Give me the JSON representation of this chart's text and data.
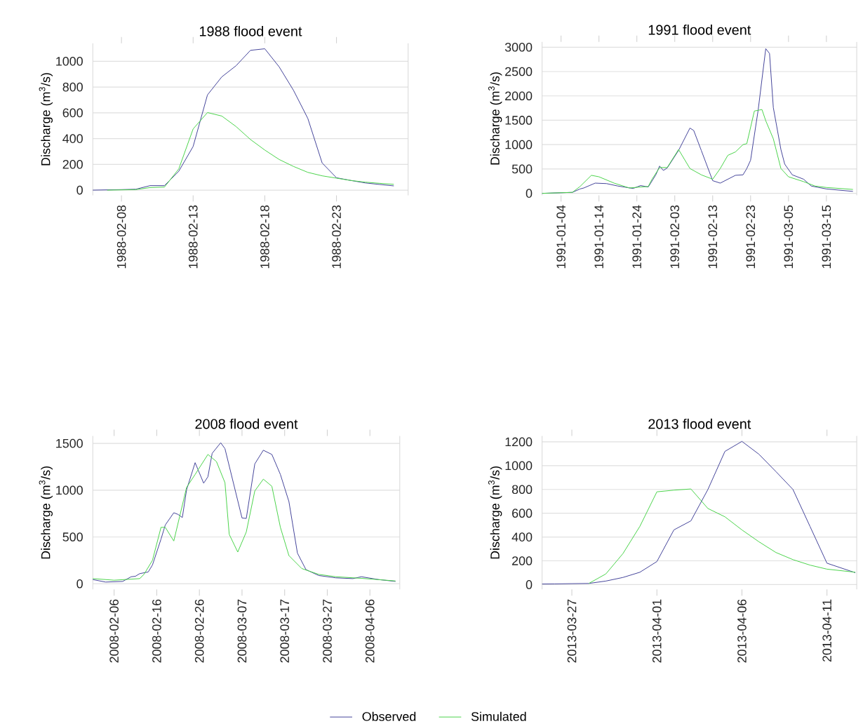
{
  "chart_data": [
    {
      "type": "line",
      "title": "1988 flood event",
      "ylabel": "Discharge (m$^{3}$/s)",
      "xlim": [
        "1988-02-06",
        "1988-02-28"
      ],
      "ylim": [
        -40,
        1140
      ],
      "xticks": [
        "1988-02-08",
        "1988-02-13",
        "1988-02-18",
        "1988-02-23"
      ],
      "yticks": [
        0,
        200,
        400,
        600,
        800,
        1000
      ],
      "grid": "y",
      "series": [
        {
          "color": "#45459a",
          "x": [
            "1988-02-06",
            "1988-02-07",
            "1988-02-08",
            "1988-02-09",
            "1988-02-10",
            "1988-02-11",
            "1988-02-12",
            "1988-02-13",
            "1988-02-14",
            "1988-02-15",
            "1988-02-16",
            "1988-02-17",
            "1988-02-18",
            "1988-02-19",
            "1988-02-20",
            "1988-02-21",
            "1988-02-22",
            "1988-02-23",
            "1988-02-24",
            "1988-02-25",
            "1988-02-26",
            "1988-02-27"
          ],
          "values": [
            0,
            2,
            4,
            7,
            35,
            35,
            147,
            339,
            739,
            879,
            966,
            1085,
            1097,
            957,
            775,
            557,
            211,
            96,
            75,
            56,
            44,
            33
          ]
        },
        {
          "color": "#4cd44c",
          "x": [
            "1988-02-07",
            "1988-02-08",
            "1988-02-09",
            "1988-02-10",
            "1988-02-11",
            "1988-02-12",
            "1988-02-13",
            "1988-02-14",
            "1988-02-15",
            "1988-02-16",
            "1988-02-17",
            "1988-02-18",
            "1988-02-19",
            "1988-02-20",
            "1988-02-21",
            "1988-02-22",
            "1988-02-23",
            "1988-02-24",
            "1988-02-25",
            "1988-02-26",
            "1988-02-27"
          ],
          "values": [
            0,
            2,
            4,
            20,
            24,
            165,
            475,
            602,
            575,
            493,
            393,
            311,
            238,
            184,
            138,
            111,
            93,
            75,
            62,
            53,
            45
          ]
        }
      ]
    },
    {
      "type": "line",
      "title": "1991 flood event",
      "ylabel": "Discharge (m$^{3}$/s)",
      "xlim": [
        "1990-12-30",
        "1991-03-23"
      ],
      "ylim": [
        -40,
        3110
      ],
      "xticks": [
        "1991-01-04",
        "1991-01-14",
        "1991-01-24",
        "1991-02-03",
        "1991-02-13",
        "1991-02-23",
        "1991-03-05",
        "1991-03-15"
      ],
      "yticks": [
        0,
        500,
        1000,
        1500,
        2000,
        2500,
        3000
      ],
      "grid": "y",
      "series": [
        {
          "color": "#45459a",
          "x": [
            "1990-12-30",
            "1991-01-07",
            "1991-01-09",
            "1991-01-10",
            "1991-01-13",
            "1991-01-16",
            "1991-01-19",
            "1991-01-23",
            "1991-01-25",
            "1991-01-27",
            "1991-01-29",
            "1991-01-30",
            "1991-01-31",
            "1991-02-01",
            "1991-02-04",
            "1991-02-07",
            "1991-02-08",
            "1991-02-10",
            "1991-02-13",
            "1991-02-15",
            "1991-02-19",
            "1991-02-21",
            "1991-02-22",
            "1991-02-23",
            "1991-02-25",
            "1991-02-27",
            "1991-02-28",
            "1991-03-01",
            "1991-03-03",
            "1991-03-04",
            "1991-03-06",
            "1991-03-09",
            "1991-03-11",
            "1991-03-15",
            "1991-03-22"
          ],
          "values": [
            0,
            20,
            90,
            110,
            210,
            200,
            150,
            100,
            160,
            130,
            380,
            560,
            470,
            520,
            880,
            1340,
            1290,
            880,
            260,
            210,
            370,
            380,
            510,
            680,
            1710,
            2970,
            2870,
            1760,
            900,
            600,
            380,
            290,
            150,
            90,
            40
          ]
        },
        {
          "color": "#4cd44c",
          "x": [
            "1990-12-30",
            "1991-01-07",
            "1991-01-09",
            "1991-01-12",
            "1991-01-14",
            "1991-01-18",
            "1991-01-22",
            "1991-01-25",
            "1991-01-27",
            "1991-01-28",
            "1991-01-30",
            "1991-02-01",
            "1991-02-04",
            "1991-02-07",
            "1991-02-10",
            "1991-02-13",
            "1991-02-15",
            "1991-02-17",
            "1991-02-19",
            "1991-02-21",
            "1991-02-22",
            "1991-02-24",
            "1991-02-26",
            "1991-02-27",
            "1991-03-01",
            "1991-03-03",
            "1991-03-05",
            "1991-03-09",
            "1991-03-12",
            "1991-03-15",
            "1991-03-22"
          ],
          "values": [
            0,
            20,
            140,
            370,
            340,
            210,
            110,
            130,
            140,
            290,
            530,
            530,
            900,
            510,
            380,
            290,
            510,
            780,
            850,
            1000,
            1020,
            1690,
            1720,
            1490,
            1120,
            510,
            340,
            240,
            150,
            120,
            80
          ]
        }
      ]
    },
    {
      "type": "line",
      "title": "2008 flood event",
      "ylabel": "Discharge (m$^{3}$/s)",
      "xlim": [
        "2008-02-01",
        "2008-04-13"
      ],
      "ylim": [
        -60,
        1580
      ],
      "xticks": [
        "2008-02-06",
        "2008-02-16",
        "2008-02-26",
        "2008-03-07",
        "2008-03-17",
        "2008-03-27",
        "2008-04-06"
      ],
      "yticks": [
        0,
        500,
        1000,
        1500
      ],
      "grid": "y",
      "legend": "bottom",
      "series": [
        {
          "name": "Observed",
          "color": "#45459a",
          "x": [
            "2008-02-01",
            "2008-02-04",
            "2008-02-08",
            "2008-02-10",
            "2008-02-11",
            "2008-02-12",
            "2008-02-14",
            "2008-02-15",
            "2008-02-17",
            "2008-02-18",
            "2008-02-20",
            "2008-02-21",
            "2008-02-22",
            "2008-02-23",
            "2008-02-25",
            "2008-02-27",
            "2008-02-28",
            "2008-02-29",
            "2008-03-02",
            "2008-03-03",
            "2008-03-07",
            "2008-03-08",
            "2008-03-10",
            "2008-03-12",
            "2008-03-14",
            "2008-03-16",
            "2008-03-18",
            "2008-03-20",
            "2008-03-22",
            "2008-03-25",
            "2008-03-29",
            "2008-04-02",
            "2008-04-04",
            "2008-04-08",
            "2008-04-12"
          ],
          "values": [
            45,
            18,
            25,
            75,
            80,
            108,
            126,
            201,
            477,
            628,
            759,
            741,
            708,
            1005,
            1294,
            1075,
            1143,
            1394,
            1507,
            1444,
            703,
            698,
            1281,
            1427,
            1382,
            1168,
            879,
            327,
            151,
            88,
            63,
            55,
            75,
            45,
            25
          ]
        },
        {
          "name": "Simulated",
          "color": "#4cd44c",
          "x": [
            "2008-02-01",
            "2008-02-06",
            "2008-02-12",
            "2008-02-13",
            "2008-02-15",
            "2008-02-17",
            "2008-02-18",
            "2008-02-20",
            "2008-02-23",
            "2008-02-25",
            "2008-02-28",
            "2008-03-01",
            "2008-03-03",
            "2008-03-04",
            "2008-03-06",
            "2008-03-08",
            "2008-03-10",
            "2008-03-12",
            "2008-03-14",
            "2008-03-16",
            "2008-03-18",
            "2008-03-21",
            "2008-03-25",
            "2008-03-29",
            "2008-04-04",
            "2008-04-12"
          ],
          "values": [
            55,
            38,
            55,
            100,
            251,
            603,
            603,
            457,
            1030,
            1168,
            1382,
            1306,
            1080,
            528,
            339,
            553,
            992,
            1118,
            1042,
            603,
            301,
            163,
            100,
            75,
            58,
            30
          ]
        }
      ]
    },
    {
      "type": "line",
      "title": "2013 flood event",
      "ylabel": "Discharge (m$^{3}$/s)",
      "xlim": [
        "2013-03-25T06:00",
        "2013-04-12T18:00"
      ],
      "ylim": [
        -40,
        1250
      ],
      "xticks": [
        "2013-03-27",
        "2013-04-01",
        "2013-04-06",
        "2013-04-11"
      ],
      "yticks": [
        0,
        200,
        400,
        600,
        800,
        1000,
        1200
      ],
      "grid": "y",
      "series": [
        {
          "color": "#45459a",
          "x": [
            "2013-03-25T06:00",
            "2013-03-26",
            "2013-03-27",
            "2013-03-28",
            "2013-03-29",
            "2013-03-30",
            "2013-03-31",
            "2013-04-01",
            "2013-04-02",
            "2013-04-03",
            "2013-04-04",
            "2013-04-05",
            "2013-04-06",
            "2013-04-07",
            "2013-04-08",
            "2013-04-09",
            "2013-04-10",
            "2013-04-11",
            "2013-04-12T16:00"
          ],
          "values": [
            5,
            6,
            8,
            10,
            30,
            60,
            104,
            194,
            460,
            536,
            800,
            1120,
            1204,
            1096,
            950,
            800,
            490,
            180,
            100
          ]
        },
        {
          "color": "#4cd44c",
          "x": [
            "2013-03-28",
            "2013-03-29",
            "2013-03-30",
            "2013-03-31",
            "2013-04-01",
            "2013-04-02",
            "2013-04-03",
            "2013-04-04",
            "2013-04-05",
            "2013-04-06",
            "2013-04-07",
            "2013-04-08",
            "2013-04-09",
            "2013-04-10",
            "2013-04-11",
            "2013-04-12T16:00"
          ],
          "values": [
            10,
            90,
            260,
            490,
            780,
            794,
            804,
            640,
            570,
            460,
            360,
            270,
            210,
            164,
            130,
            104
          ]
        }
      ]
    }
  ]
}
